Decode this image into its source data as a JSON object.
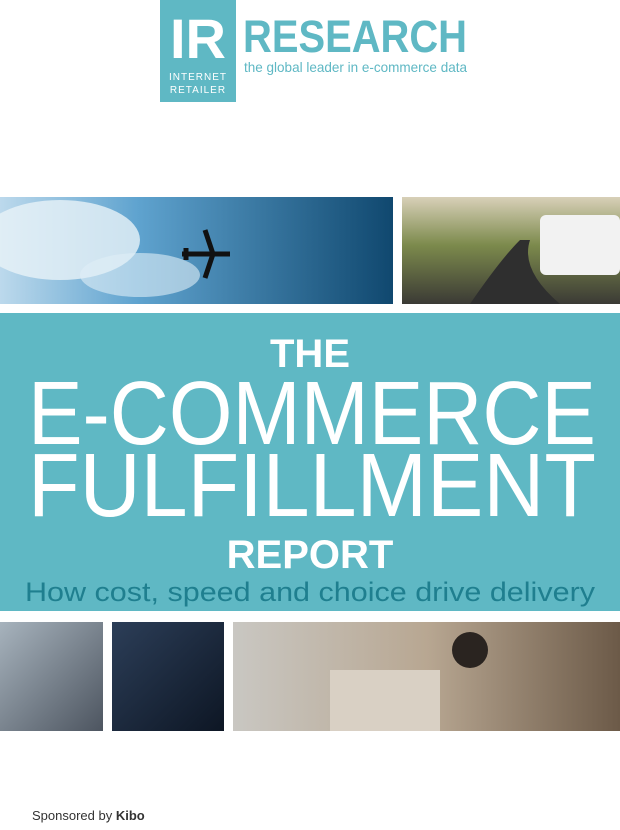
{
  "logo": {
    "mark": "IR",
    "line1": "INTERNET",
    "line2": "RETAILER",
    "brand": "RESEARCH",
    "tagline": "the global leader in e-commerce data"
  },
  "title": {
    "line1": "THE",
    "line2": "E-COMMERCE",
    "line3": "FULFILLMENT",
    "line4": "REPORT"
  },
  "subtitle": "How cost, speed and choice drive delivery",
  "footer": {
    "prefix": "Sponsored by",
    "sponsor": "Kibo"
  }
}
